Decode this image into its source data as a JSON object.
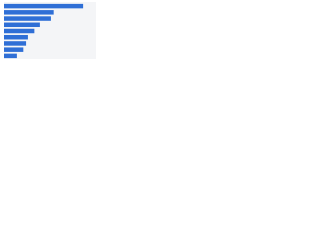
{
  "chart_data": {
    "type": "barh",
    "categories": [
      null,
      null,
      null,
      null,
      null,
      null,
      null,
      null,
      null
    ],
    "values": [
      86,
      54,
      51,
      39,
      33,
      26,
      24,
      21,
      14
    ],
    "color": "#2f6fd6",
    "xlim": [
      0,
      100
    ],
    "grid": true
  }
}
